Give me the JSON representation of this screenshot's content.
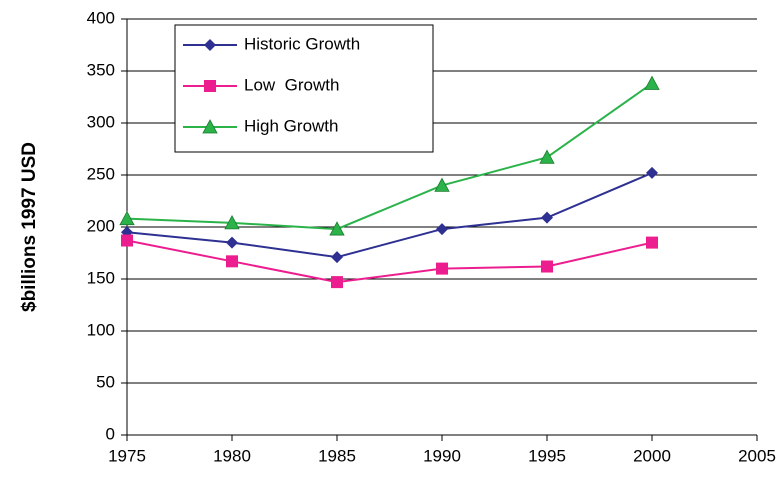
{
  "chart_data": {
    "type": "line",
    "y_label": "$billions 1997 USD",
    "x": [
      1975,
      1980,
      1985,
      1990,
      1995,
      2000
    ],
    "series": [
      {
        "name": "Historic Growth",
        "color": "#2e3192",
        "marker": "diamond",
        "values": [
          195,
          185,
          171,
          198,
          209,
          252
        ]
      },
      {
        "name": "Low  Growth",
        "color": "#ec1e8f",
        "marker": "square",
        "values": [
          187,
          167,
          147,
          160,
          162,
          185
        ]
      },
      {
        "name": "High Growth",
        "color": "#2bb34a",
        "marker": "triangle",
        "values": [
          208,
          204,
          198,
          240,
          267,
          338
        ]
      }
    ],
    "xlim": [
      1975,
      2005
    ],
    "xticks": [
      1975,
      1980,
      1985,
      1990,
      1995,
      2000,
      2005
    ],
    "ylim": [
      0,
      400
    ],
    "yticks": [
      0,
      50,
      100,
      150,
      200,
      250,
      300,
      350,
      400
    ],
    "grid": true,
    "legend": "upper left"
  }
}
